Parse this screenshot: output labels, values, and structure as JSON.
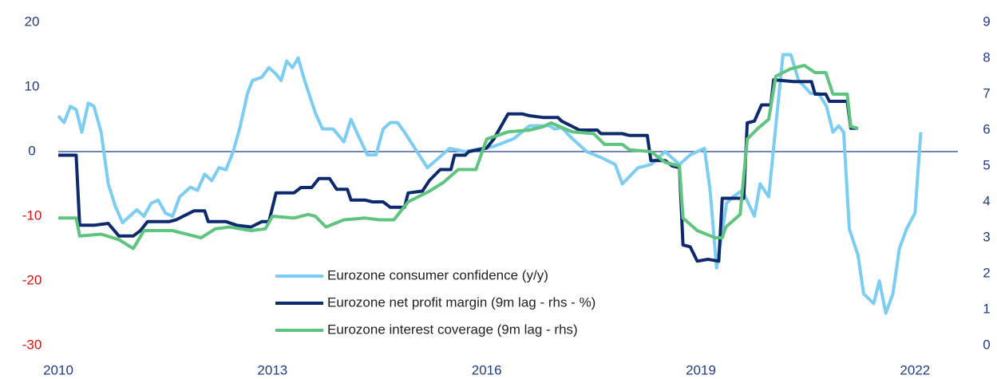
{
  "chart_data": {
    "type": "line",
    "xlim": [
      2010,
      2022.6
    ],
    "xticks": [
      2010,
      2013,
      2016,
      2019,
      2022
    ],
    "ylim": [
      -30,
      20
    ],
    "yticks": [
      20,
      10,
      0,
      -10,
      -20,
      -30
    ],
    "y2lim": [
      0,
      9
    ],
    "y2ticks": [
      9,
      8,
      7,
      6,
      5,
      4,
      3,
      2,
      1,
      0
    ],
    "tick_color": "#1f3c88",
    "negative_tick_color": "#e31010",
    "zero_line": true,
    "zero_line_color": "#1f3c88",
    "legend": "lower center",
    "series": [
      {
        "name": "Eurozone consumer confidence (y/y)",
        "color": "#7ccdf3",
        "x": [
          2010.0,
          2010.08,
          2010.17,
          2010.25,
          2010.33,
          2010.42,
          2010.5,
          2010.6,
          2010.7,
          2010.8,
          2010.9,
          2011.0,
          2011.1,
          2011.2,
          2011.3,
          2011.4,
          2011.5,
          2011.6,
          2011.7,
          2011.85,
          2011.95,
          2012.05,
          2012.15,
          2012.25,
          2012.35,
          2012.45,
          2012.55,
          2012.65,
          2012.72,
          2012.85,
          2012.95,
          2013.05,
          2013.12,
          2013.2,
          2013.28,
          2013.36,
          2013.45,
          2013.6,
          2013.7,
          2013.85,
          2014.0,
          2014.1,
          2014.2,
          2014.33,
          2014.45,
          2014.55,
          2014.65,
          2014.75,
          2014.85,
          2015.17,
          2015.48,
          2015.7,
          2015.93,
          2016.1,
          2016.38,
          2016.6,
          2016.88,
          2016.95,
          2017.05,
          2017.2,
          2017.4,
          2017.62,
          2017.8,
          2017.9,
          2018.12,
          2018.3,
          2018.5,
          2018.7,
          2018.85,
          2019.05,
          2019.13,
          2019.22,
          2019.36,
          2019.45,
          2019.58,
          2019.75,
          2019.83,
          2019.95,
          2020.05,
          2020.15,
          2020.26,
          2020.37,
          2020.54,
          2020.65,
          2020.76,
          2020.85,
          2020.93,
          2021.0,
          2021.08,
          2021.2,
          2021.28,
          2021.42,
          2021.5,
          2021.59,
          2021.69,
          2021.78,
          2021.88,
          2022.0,
          2022.08
        ],
        "values": [
          5.5,
          4.5,
          7,
          6.5,
          3,
          7.5,
          7,
          3,
          -5,
          -8.5,
          -11,
          -10,
          -9,
          -10,
          -8,
          -7.5,
          -9.5,
          -10,
          -7,
          -5.5,
          -6,
          -3.5,
          -4.5,
          -2.5,
          -2.8,
          0,
          4,
          9,
          11,
          11.5,
          13,
          12,
          11,
          14,
          13,
          14.5,
          11,
          6,
          3.5,
          3.5,
          1.5,
          5,
          2.5,
          -0.5,
          -0.5,
          3.5,
          4.5,
          4.5,
          3,
          -2.5,
          0.5,
          0,
          0.5,
          0.8,
          2,
          4,
          4,
          3.5,
          3.7,
          2,
          0,
          -1,
          -2,
          -5,
          -2.5,
          -2,
          0,
          -2,
          -0.5,
          0.5,
          -6,
          -18,
          -8,
          -7,
          -6,
          -10,
          -5,
          -7,
          4,
          15,
          15,
          11,
          9,
          9,
          7,
          3,
          4,
          3,
          -12,
          -16,
          -22,
          -23.5,
          -20,
          -25,
          -22,
          -15,
          -12,
          -9.5,
          3
        ]
      },
      {
        "name": "Eurozone net profit margin (9m lag - rhs - %)",
        "color": "#0d2a6e",
        "axis": "y2",
        "x": [
          2010.0,
          2010.25,
          2010.3,
          2010.5,
          2010.7,
          2010.85,
          2011.05,
          2011.15,
          2011.25,
          2011.55,
          2011.65,
          2011.9,
          2012.05,
          2012.1,
          2012.35,
          2012.5,
          2012.7,
          2012.85,
          2012.95,
          2013.05,
          2013.3,
          2013.4,
          2013.55,
          2013.65,
          2013.8,
          2013.9,
          2014.05,
          2014.1,
          2014.3,
          2014.4,
          2014.55,
          2014.65,
          2014.85,
          2014.9,
          2015.1,
          2015.2,
          2015.35,
          2015.5,
          2015.55,
          2015.7,
          2015.75,
          2016.0,
          2016.1,
          2016.3,
          2016.5,
          2016.6,
          2016.8,
          2017.0,
          2017.05,
          2017.3,
          2017.55,
          2017.6,
          2017.9,
          2018.0,
          2018.25,
          2018.3,
          2018.5,
          2018.6,
          2018.7,
          2018.75,
          2018.85,
          2018.95,
          2019.1,
          2019.25,
          2019.3,
          2019.6,
          2019.65,
          2019.75,
          2019.85,
          2019.98,
          2020.02,
          2020.3,
          2020.55,
          2020.6,
          2020.75,
          2020.8,
          2021.05,
          2021.1,
          2021.2
        ],
        "values": [
          5.3,
          5.3,
          3.35,
          3.35,
          3.4,
          3.05,
          3.05,
          3.2,
          3.45,
          3.45,
          3.5,
          3.75,
          3.75,
          3.45,
          3.45,
          3.35,
          3.3,
          3.45,
          3.45,
          4.25,
          4.25,
          4.4,
          4.4,
          4.65,
          4.65,
          4.35,
          4.35,
          4.05,
          4.05,
          4.0,
          4.0,
          3.85,
          3.85,
          4.25,
          4.3,
          4.6,
          4.9,
          4.9,
          5.3,
          5.3,
          5.4,
          5.5,
          5.75,
          6.45,
          6.45,
          6.4,
          6.35,
          6.35,
          6.25,
          6.0,
          6.0,
          5.9,
          5.9,
          5.85,
          5.85,
          5.15,
          5.15,
          5.0,
          4.95,
          2.8,
          2.75,
          2.35,
          2.4,
          2.35,
          4.1,
          4.1,
          6.2,
          6.25,
          6.7,
          6.7,
          7.4,
          7.35,
          7.35,
          7.0,
          7.0,
          6.8,
          6.8,
          6.05,
          6.05
        ]
      },
      {
        "name": "Eurozone interest coverage (9m lag - rhs)",
        "color": "#5ec47e",
        "axis": "y2",
        "x": [
          2010.0,
          2010.25,
          2010.3,
          2010.6,
          2010.85,
          2011.05,
          2011.2,
          2011.6,
          2011.7,
          2012.0,
          2012.2,
          2012.4,
          2012.55,
          2012.7,
          2012.9,
          2013.0,
          2013.3,
          2013.5,
          2013.6,
          2013.75,
          2014.0,
          2014.3,
          2014.5,
          2014.7,
          2014.9,
          2015.2,
          2015.4,
          2015.6,
          2015.85,
          2016.0,
          2016.3,
          2016.6,
          2016.8,
          2016.9,
          2017.2,
          2017.5,
          2017.65,
          2017.9,
          2018.0,
          2018.3,
          2018.5,
          2018.7,
          2018.75,
          2018.95,
          2019.2,
          2019.3,
          2019.35,
          2019.55,
          2019.65,
          2019.8,
          2019.95,
          2020.05,
          2020.25,
          2020.45,
          2020.6,
          2020.75,
          2020.85,
          2021.05,
          2021.1,
          2021.2
        ],
        "values": [
          3.55,
          3.55,
          3.05,
          3.1,
          2.95,
          2.7,
          3.2,
          3.2,
          3.15,
          3.0,
          3.25,
          3.3,
          3.25,
          3.2,
          3.25,
          3.6,
          3.55,
          3.65,
          3.6,
          3.3,
          3.5,
          3.55,
          3.5,
          3.5,
          4.0,
          4.3,
          4.55,
          4.9,
          4.9,
          5.75,
          5.95,
          6.0,
          6.1,
          6.2,
          5.95,
          5.9,
          5.6,
          5.6,
          5.45,
          5.4,
          5.1,
          5.0,
          3.55,
          3.2,
          3.0,
          3.0,
          3.3,
          3.65,
          5.75,
          6.05,
          6.3,
          7.5,
          7.7,
          7.8,
          7.6,
          7.6,
          7.0,
          7.0,
          6.1,
          6.05
        ]
      }
    ]
  }
}
